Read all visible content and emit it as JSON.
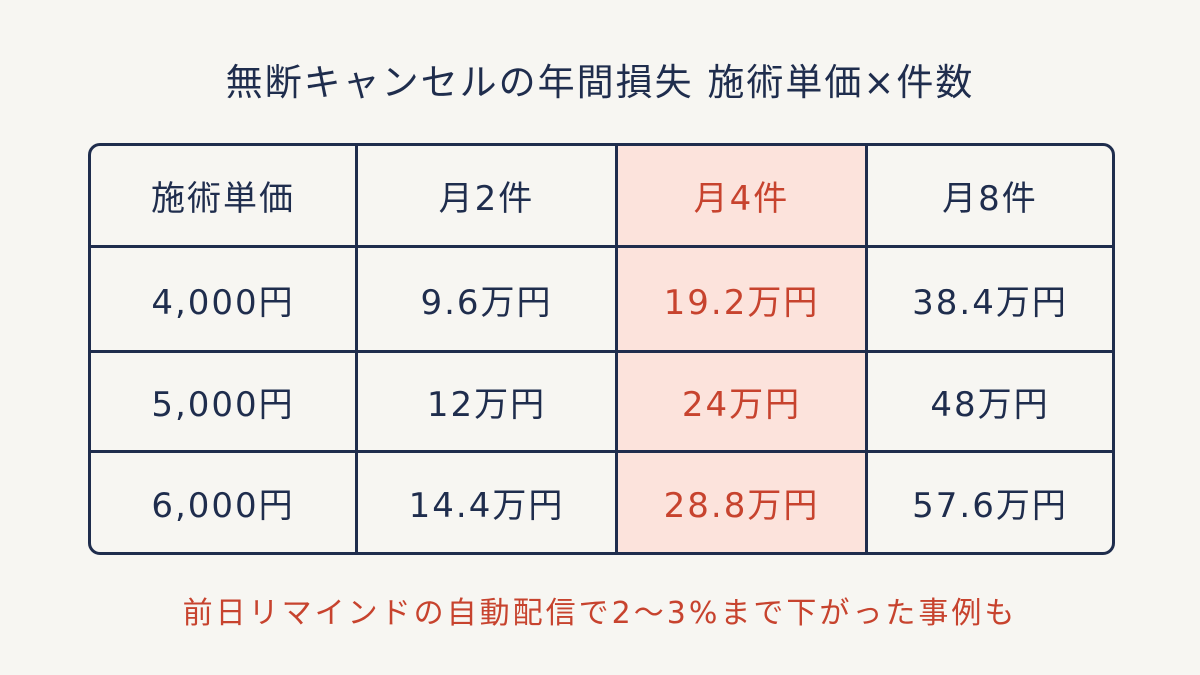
{
  "header": {
    "title": "無断キャンセルの年間損失 施術単価×件数"
  },
  "table": {
    "columns": [
      "施術単価",
      "月2件",
      "月4件",
      "月8件"
    ],
    "rows": [
      [
        "4,000円",
        "9.6万円",
        "19.2万円",
        "38.4万円"
      ],
      [
        "5,000円",
        "12万円",
        "24万円",
        "48万円"
      ],
      [
        "6,000円",
        "14.4万円",
        "28.8万円",
        "57.6万円"
      ]
    ]
  },
  "footer": {
    "note": "前日リマインドの自動配信で2〜3%まで下がった事例も"
  }
}
